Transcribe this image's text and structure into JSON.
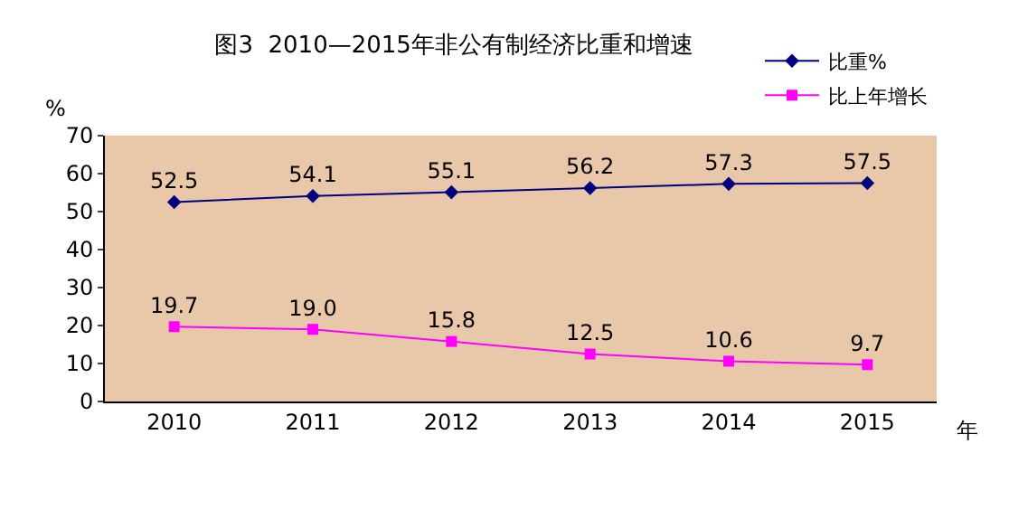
{
  "chart_data": {
    "type": "line",
    "title": "图3  2010—2015年非公有制经济比重和增速",
    "ylabel": "%",
    "xlabel": "年",
    "categories": [
      "2010",
      "2011",
      "2012",
      "2013",
      "2014",
      "2015"
    ],
    "series": [
      {
        "name": "比重%",
        "color": "#000080",
        "marker": "diamond",
        "values": [
          52.5,
          54.1,
          55.1,
          56.2,
          57.3,
          57.5
        ]
      },
      {
        "name": "比上年增长",
        "color": "#ff00ff",
        "marker": "square",
        "values": [
          19.7,
          19.0,
          15.8,
          12.5,
          10.6,
          9.7
        ]
      }
    ],
    "value_labels": [
      [
        "52.5",
        "54.1",
        "55.1",
        "56.2",
        "57.3",
        "57.5"
      ],
      [
        "19.7",
        "19.0",
        "15.8",
        "12.5",
        "10.6",
        "9.7"
      ]
    ],
    "ylim": [
      0,
      70
    ],
    "yticks": [
      0,
      10,
      20,
      30,
      40,
      50,
      60,
      70
    ],
    "grid": false,
    "legend": "top right",
    "line_style": "solid"
  }
}
